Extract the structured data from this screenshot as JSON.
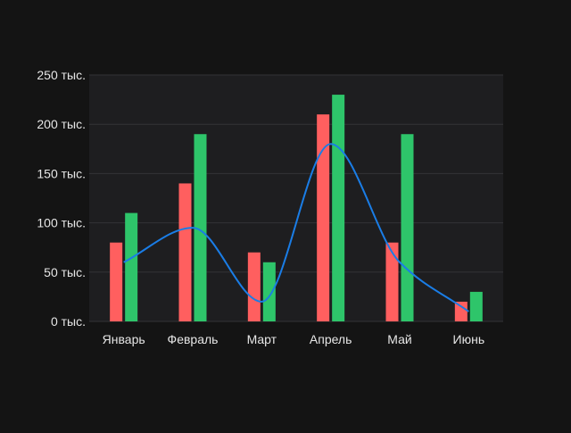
{
  "chart_data": {
    "type": "bar",
    "categories": [
      "Январь",
      "Февраль",
      "Март",
      "Апрель",
      "Май",
      "Июнь"
    ],
    "series": [
      {
        "type": "bar",
        "color": "#ff5f5f",
        "values": [
          80000,
          140000,
          70000,
          210000,
          80000,
          20000
        ]
      },
      {
        "type": "bar",
        "color": "#2ec56a",
        "values": [
          110000,
          190000,
          60000,
          230000,
          190000,
          30000
        ]
      },
      {
        "type": "line",
        "smooth": true,
        "color": "#1a7de6",
        "values": [
          60000,
          95000,
          20000,
          180000,
          60000,
          10000
        ]
      }
    ],
    "yticks": [
      {
        "value": 0,
        "label": "0 тыс."
      },
      {
        "value": 50000,
        "label": "50 тыс."
      },
      {
        "value": 100000,
        "label": "100 тыс."
      },
      {
        "value": 150000,
        "label": "150 тыс."
      },
      {
        "value": 200000,
        "label": "200 тыс."
      },
      {
        "value": 250000,
        "label": "250 тыс."
      }
    ],
    "ylim": [
      0,
      250000
    ],
    "grid": true,
    "colors": {
      "background": "#141414",
      "plot_background": "#1e1e20",
      "grid": "#333336",
      "text": "#e6e6e6"
    }
  }
}
